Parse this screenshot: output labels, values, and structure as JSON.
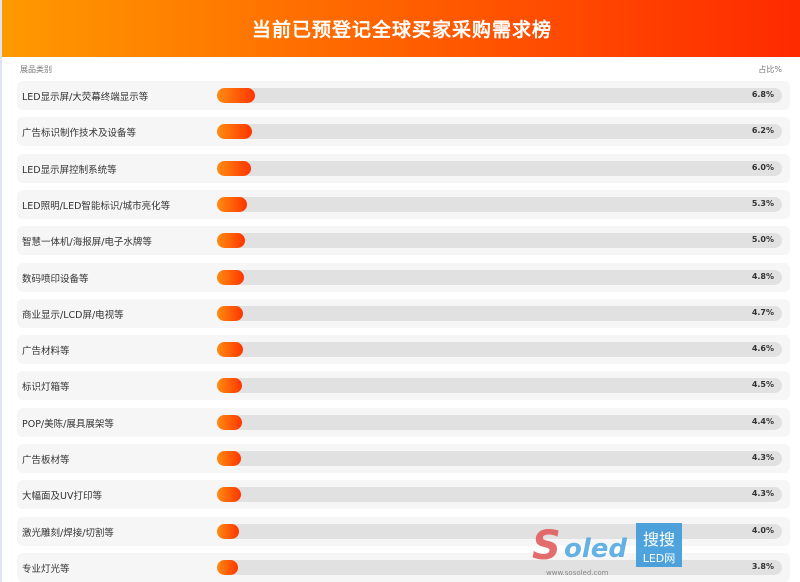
{
  "chart_data": {
    "type": "bar",
    "title": "当前已预登记全球买家采购需求榜",
    "xlabel": "展品类别",
    "ylabel": "占比%",
    "categories": [
      "LED显示屏/大荧幕终端显示等",
      "广告标识制作技术及设备等",
      "LED显示屏控制系统等",
      "LED照明/LED智能标识/城市亮化等",
      "智慧一体机/海报屏/电子水牌等",
      "数码喷印设备等",
      "商业显示/LCD屏/电视等",
      "广告材料等",
      "标识灯箱等",
      "POP/美陈/展具展架等",
      "广告板材等",
      "大幅面及UV打印等",
      "激光雕刻/焊接/切割等",
      "专业灯光等"
    ],
    "values": [
      6.8,
      6.2,
      6.0,
      5.3,
      5.0,
      4.8,
      4.7,
      4.6,
      4.5,
      4.4,
      4.3,
      4.3,
      4.0,
      3.8
    ],
    "labels": [
      "6.8%",
      "6.2%",
      "6.0%",
      "5.3%",
      "5.0%",
      "4.8%",
      "4.7%",
      "4.6%",
      "4.5%",
      "4.4%",
      "4.3%",
      "4.3%",
      "4.0%",
      "3.8%"
    ],
    "colors": {
      "header_start": "#ff9a00",
      "header_end": "#ff2a00",
      "bar_start": "#ff8c10",
      "bar_end": "#ff3500",
      "track": "#e1e1e1"
    }
  },
  "watermark": {
    "brand": "Soled",
    "cn": "搜搜",
    "sub": "LED网",
    "url": "www.sosoled.com"
  }
}
